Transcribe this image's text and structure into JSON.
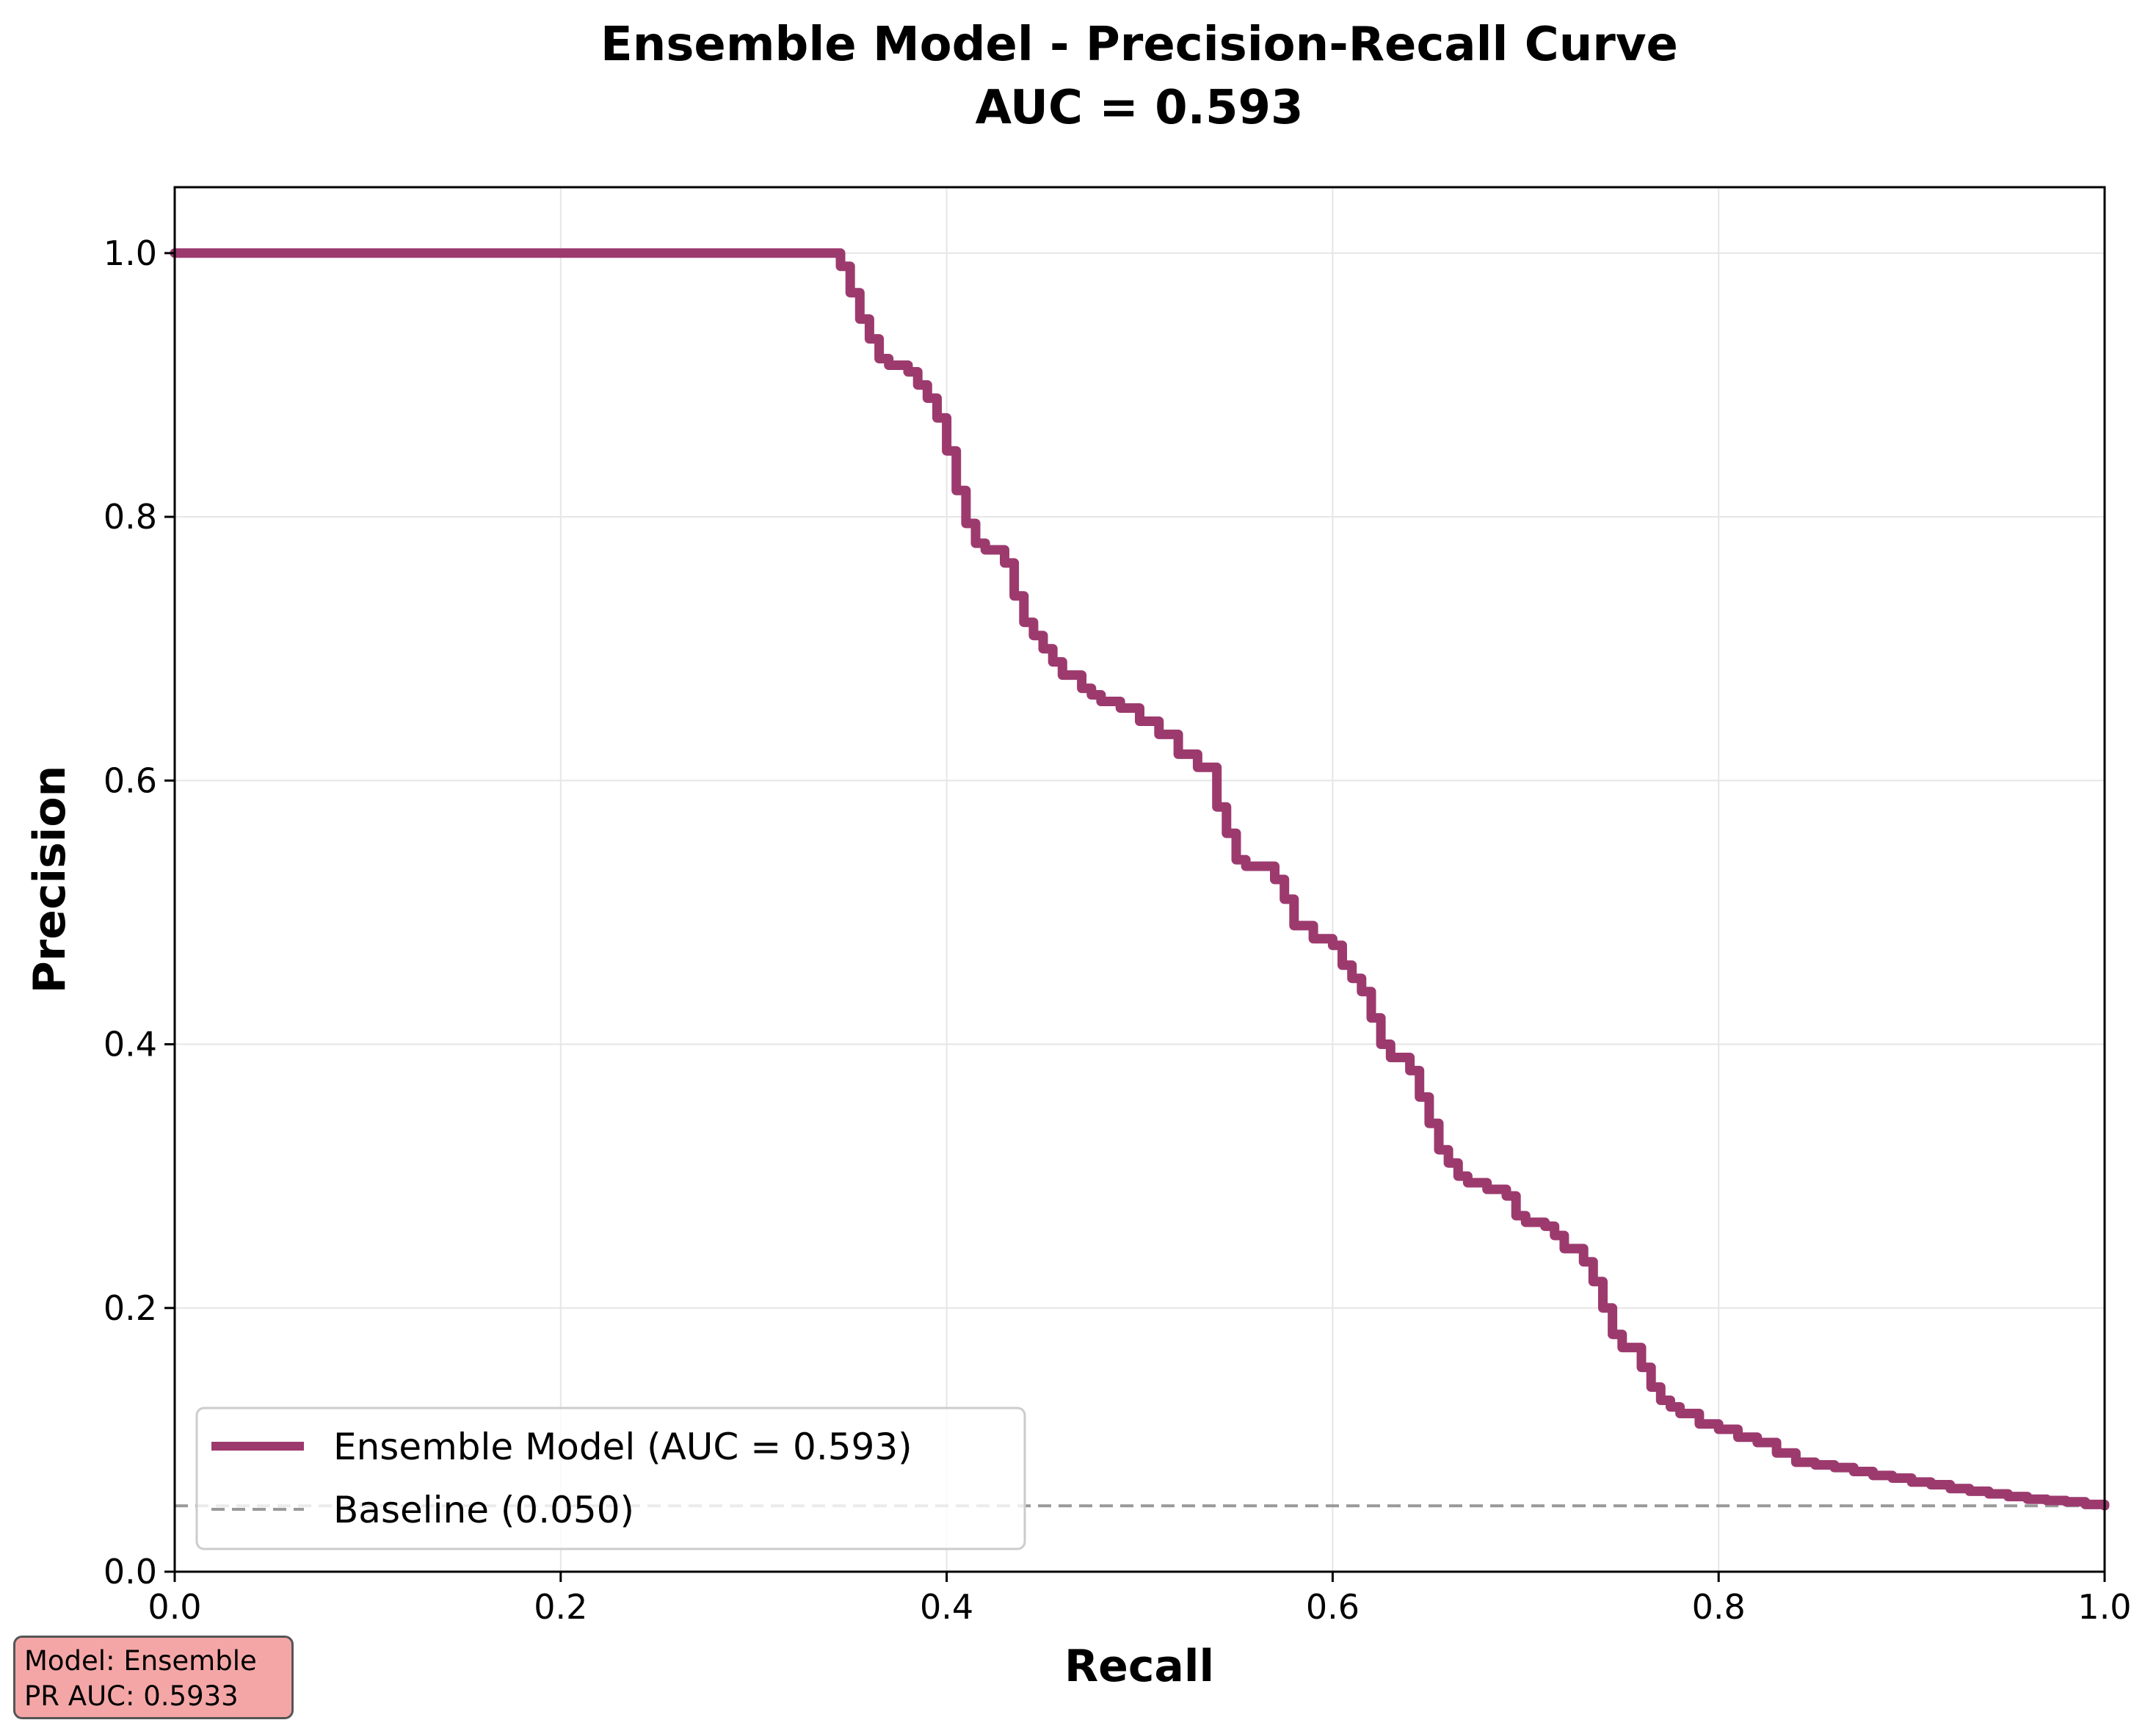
{
  "chart_data": {
    "type": "line",
    "title": "Ensemble Model - Precision-Recall Curve",
    "subtitle": "AUC = 0.593",
    "xlabel": "Recall",
    "ylabel": "Precision",
    "xlim": [
      0.0,
      1.0
    ],
    "ylim": [
      0.0,
      1.05
    ],
    "xticks": [
      "0.0",
      "0.2",
      "0.4",
      "0.6",
      "0.8",
      "1.0"
    ],
    "yticks": [
      "0.0",
      "0.2",
      "0.4",
      "0.6",
      "0.8",
      "1.0"
    ],
    "grid": true,
    "legend_position": "lower-left",
    "series": [
      {
        "name": "Ensemble Model (AUC = 0.593)",
        "color": "#9c3a6e",
        "style": "solid",
        "x": [
          0.0,
          0.34,
          0.345,
          0.35,
          0.355,
          0.36,
          0.365,
          0.37,
          0.38,
          0.385,
          0.39,
          0.395,
          0.4,
          0.405,
          0.41,
          0.415,
          0.42,
          0.43,
          0.435,
          0.44,
          0.445,
          0.45,
          0.455,
          0.46,
          0.47,
          0.475,
          0.48,
          0.49,
          0.5,
          0.51,
          0.52,
          0.53,
          0.54,
          0.545,
          0.55,
          0.555,
          0.57,
          0.575,
          0.58,
          0.59,
          0.6,
          0.605,
          0.61,
          0.615,
          0.62,
          0.625,
          0.63,
          0.64,
          0.645,
          0.65,
          0.655,
          0.66,
          0.665,
          0.67,
          0.68,
          0.69,
          0.695,
          0.7,
          0.71,
          0.715,
          0.72,
          0.73,
          0.735,
          0.74,
          0.745,
          0.75,
          0.76,
          0.765,
          0.77,
          0.775,
          0.78,
          0.79,
          0.8,
          0.81,
          0.82,
          0.83,
          0.84,
          0.85,
          0.86,
          0.87,
          0.88,
          0.89,
          0.9,
          0.91,
          0.92,
          0.93,
          0.94,
          0.95,
          0.96,
          0.97,
          0.98,
          0.99,
          1.0
        ],
        "y": [
          1.0,
          1.0,
          0.99,
          0.97,
          0.95,
          0.935,
          0.92,
          0.915,
          0.91,
          0.9,
          0.89,
          0.875,
          0.85,
          0.82,
          0.795,
          0.78,
          0.775,
          0.765,
          0.74,
          0.72,
          0.71,
          0.7,
          0.69,
          0.68,
          0.67,
          0.665,
          0.66,
          0.655,
          0.645,
          0.635,
          0.62,
          0.61,
          0.58,
          0.56,
          0.54,
          0.535,
          0.525,
          0.51,
          0.49,
          0.48,
          0.475,
          0.46,
          0.45,
          0.44,
          0.42,
          0.4,
          0.39,
          0.38,
          0.36,
          0.34,
          0.32,
          0.31,
          0.3,
          0.295,
          0.29,
          0.285,
          0.27,
          0.265,
          0.262,
          0.255,
          0.245,
          0.235,
          0.22,
          0.2,
          0.18,
          0.17,
          0.155,
          0.14,
          0.13,
          0.125,
          0.12,
          0.112,
          0.108,
          0.102,
          0.098,
          0.09,
          0.083,
          0.081,
          0.079,
          0.076,
          0.073,
          0.071,
          0.068,
          0.066,
          0.063,
          0.061,
          0.059,
          0.057,
          0.055,
          0.054,
          0.053,
          0.051,
          0.05
        ]
      },
      {
        "name": "Baseline (0.050)",
        "color": "#999999",
        "style": "dashed",
        "x": [
          0.0,
          1.0
        ],
        "y": [
          0.05,
          0.05
        ]
      }
    ]
  },
  "info_box": {
    "model_line": "Model: Ensemble",
    "auc_line": "PR AUC: 0.5933",
    "background": "#f4a6a6"
  }
}
